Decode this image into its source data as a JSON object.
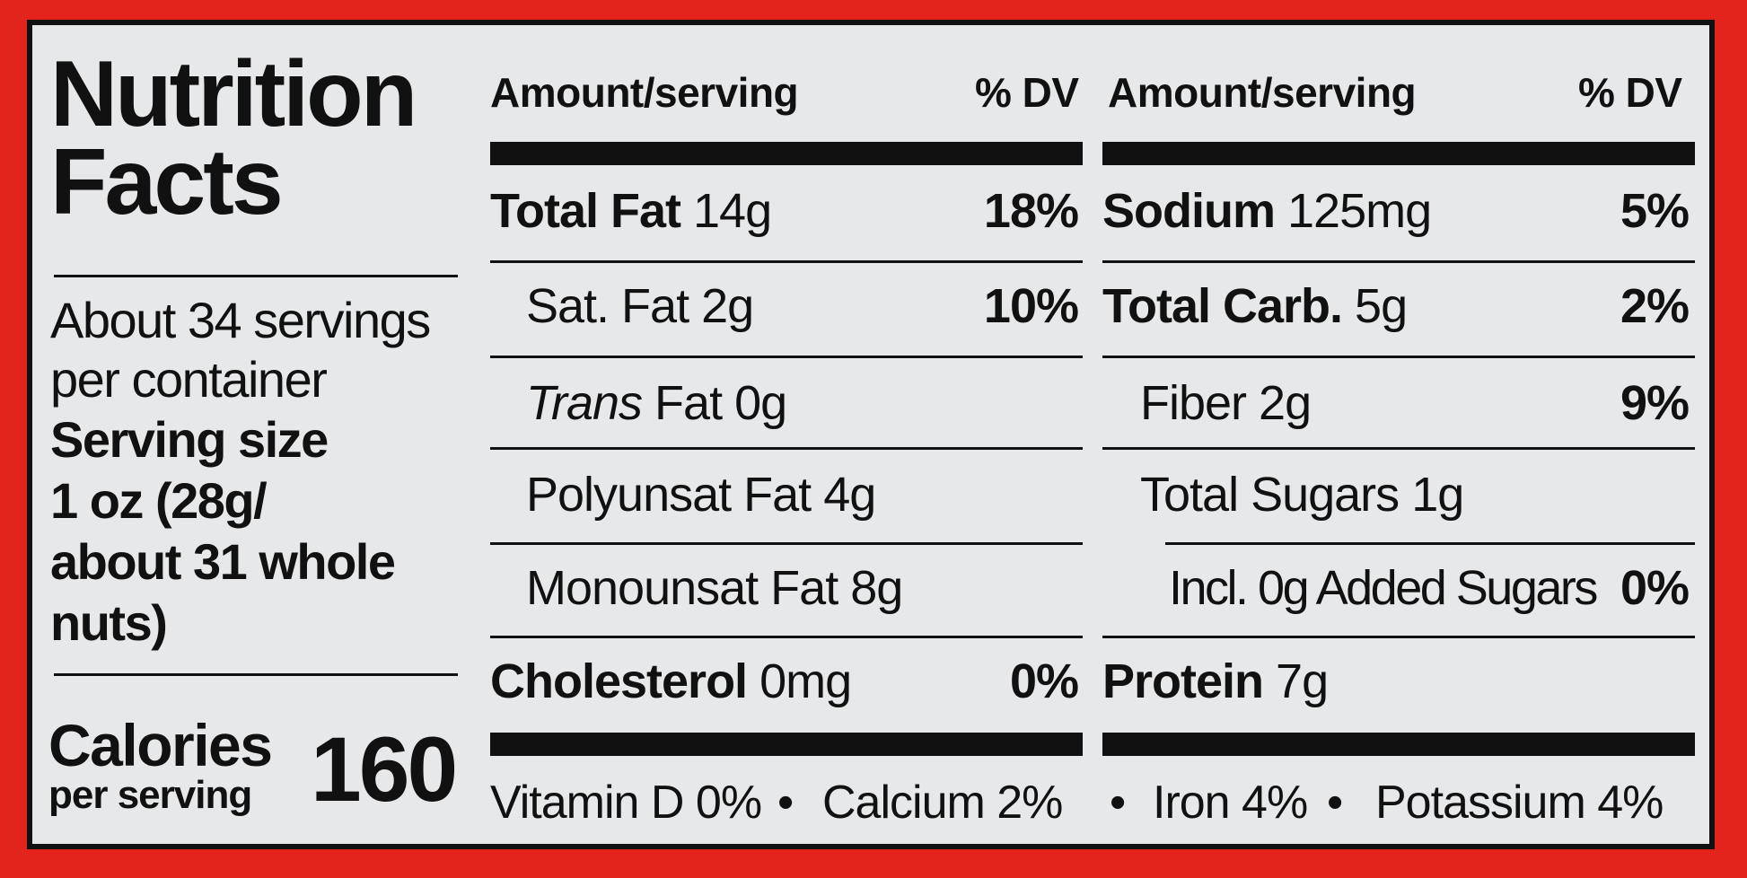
{
  "title_line1": "Nutrition",
  "title_line2": "Facts",
  "servings_line1": "About 34 servings",
  "servings_line2": "per container",
  "serving_size_label": "Serving size",
  "serving_size_line1": "1 oz (28g/",
  "serving_size_line2": "about 31 whole nuts)",
  "calories_label": "Calories",
  "calories_sub": "per serving",
  "calories_value": "160",
  "header": {
    "amount_left": "Amount/serving",
    "dv_left": "% DV",
    "amount_right": "Amount/serving",
    "dv_right": "% DV"
  },
  "left_rows": [
    {
      "name": "Total Fat",
      "amount": "14g",
      "dv": "18%"
    },
    {
      "name": "Sat. Fat",
      "amount": "2g",
      "dv": "10%"
    },
    {
      "name": "Trans",
      "rest": "Fat 0g"
    },
    {
      "name": "Polyunsat Fat",
      "amount": "4g"
    },
    {
      "name": "Monounsat Fat",
      "amount": "8g"
    },
    {
      "name": "Cholesterol",
      "amount": "0mg",
      "dv": "0%"
    }
  ],
  "right_rows": [
    {
      "name": "Sodium",
      "amount": "125mg",
      "dv": "5%"
    },
    {
      "name": "Total Carb.",
      "amount": "5g",
      "dv": "2%"
    },
    {
      "name": "Fiber",
      "amount": "2g",
      "dv": "9%"
    },
    {
      "name": "Total Sugars",
      "amount": "1g"
    },
    {
      "name": "Incl. 0g Added Sugars",
      "dv": "0%"
    },
    {
      "name": "Protein",
      "amount": "7g"
    }
  ],
  "footer": {
    "vitamin_d": "Vitamin D 0%",
    "calcium": "Calcium 2%",
    "iron": "Iron 4%",
    "potassium": "Potassium 4%",
    "bullet": "•"
  }
}
